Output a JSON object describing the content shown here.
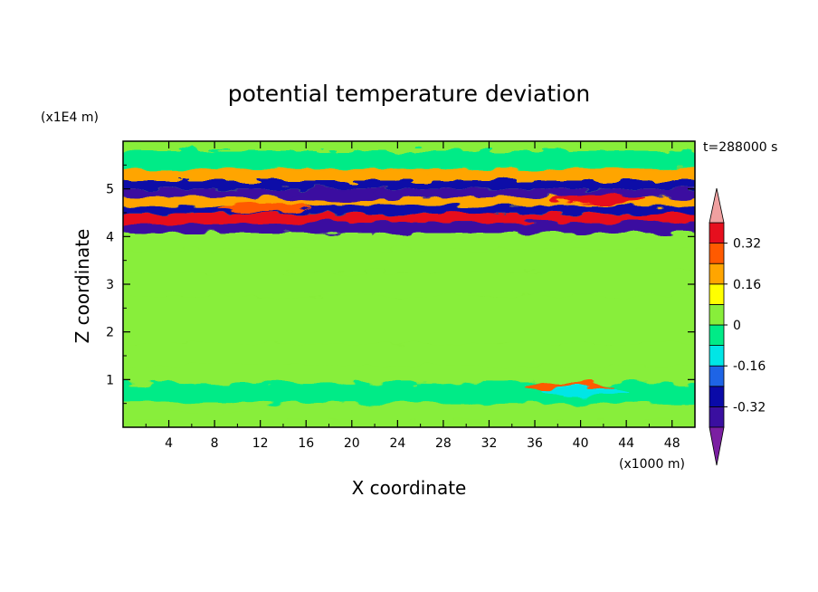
{
  "chart_data": {
    "type": "heatmap",
    "title": "potential temperature deviation",
    "xlabel": "X coordinate",
    "ylabel": "Z coordinate",
    "x_unit": "(x1000 m)",
    "y_unit": "(x1E4 m)",
    "time_label": "t=288000 s",
    "xlim": [
      0,
      50
    ],
    "ylim": [
      0,
      6
    ],
    "x_ticks": [
      "4",
      "8",
      "12",
      "16",
      "20",
      "24",
      "28",
      "32",
      "36",
      "40",
      "44",
      "48"
    ],
    "y_ticks": [
      "1",
      "2",
      "3",
      "4",
      "5"
    ],
    "colorbar": {
      "levels": [
        -0.4,
        -0.32,
        -0.24,
        -0.16,
        -0.08,
        0,
        0.08,
        0.16,
        0.24,
        0.32,
        0.4
      ],
      "labels": [
        "0.32",
        "0.16",
        "0",
        "-0.16",
        "-0.32"
      ],
      "colors": [
        "#7b1fa2",
        "#3a0fa0",
        "#0a0aa8",
        "#1e64e6",
        "#00e6e6",
        "#00eb87",
        "#88ee3a",
        "#ffff00",
        "#ffa500",
        "#ff5a00",
        "#e60f1e",
        "#f0a0a0"
      ],
      "extend": "both"
    },
    "bands": [
      {
        "z": 0.25,
        "value": 0.04
      },
      {
        "z": 0.75,
        "value": -0.02
      },
      {
        "z": 1.1,
        "value": 0.04
      },
      {
        "z": 1.5,
        "value": 0.03
      },
      {
        "z": 2.0,
        "value": 0.05
      },
      {
        "z": 2.5,
        "value": 0.02
      },
      {
        "z": 3.0,
        "value": 0.04
      },
      {
        "z": 3.5,
        "value": 0.03
      },
      {
        "z": 3.95,
        "value": 0.02
      },
      {
        "z": 4.2,
        "value": -0.34
      },
      {
        "z": 4.4,
        "value": 0.38
      },
      {
        "z": 4.55,
        "value": -0.3
      },
      {
        "z": 4.75,
        "value": 0.2
      },
      {
        "z": 4.9,
        "value": -0.36
      },
      {
        "z": 5.1,
        "value": -0.28
      },
      {
        "z": 5.25,
        "value": 0.22
      },
      {
        "z": 5.6,
        "value": -0.02
      }
    ],
    "blobs": [
      {
        "x": 18.5,
        "z": 4.85,
        "value": -0.38
      },
      {
        "x": 41.5,
        "z": 4.78,
        "value": 0.34
      },
      {
        "x": 12.5,
        "z": 4.6,
        "value": 0.3
      },
      {
        "x": 30.0,
        "z": 4.4,
        "value": 0.36
      },
      {
        "x": 39.0,
        "z": 0.85,
        "value": 0.3
      },
      {
        "x": 40.5,
        "z": 0.75,
        "value": -0.1
      },
      {
        "x": 25.0,
        "z": 5.3,
        "value": 0.18
      },
      {
        "x": 48.0,
        "z": 4.4,
        "value": 0.38
      },
      {
        "x": 2.0,
        "z": 4.35,
        "value": 0.38
      },
      {
        "x": 8.0,
        "z": 0.4,
        "value": 0.03
      }
    ]
  }
}
